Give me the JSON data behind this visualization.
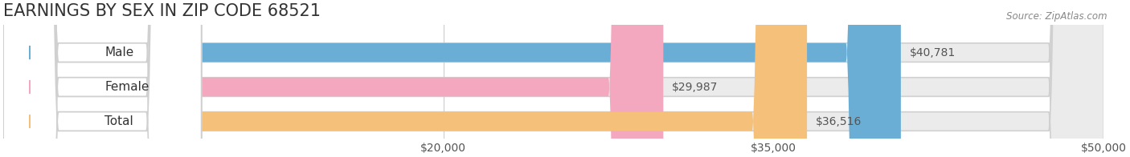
{
  "title": "EARNINGS BY SEX IN ZIP CODE 68521",
  "source": "Source: ZipAtlas.com",
  "categories": [
    "Male",
    "Female",
    "Total"
  ],
  "values": [
    40781,
    29987,
    36516
  ],
  "bar_colors": [
    "#6aaed6",
    "#f4a8c0",
    "#f5c07a"
  ],
  "label_colors": [
    "#6aaed6",
    "#f4a8c0",
    "#f5c07a"
  ],
  "bar_bg_color": "#ebebeb",
  "xlim": [
    0,
    50000
  ],
  "xticks": [
    20000,
    35000,
    50000
  ],
  "xtick_labels": [
    "$20,000",
    "$35,000",
    "$50,000"
  ],
  "title_fontsize": 15,
  "tick_fontsize": 10,
  "value_label_fontsize": 10,
  "cat_label_fontsize": 11,
  "background_color": "#ffffff",
  "bar_height": 0.55,
  "bar_gap": 0.18
}
